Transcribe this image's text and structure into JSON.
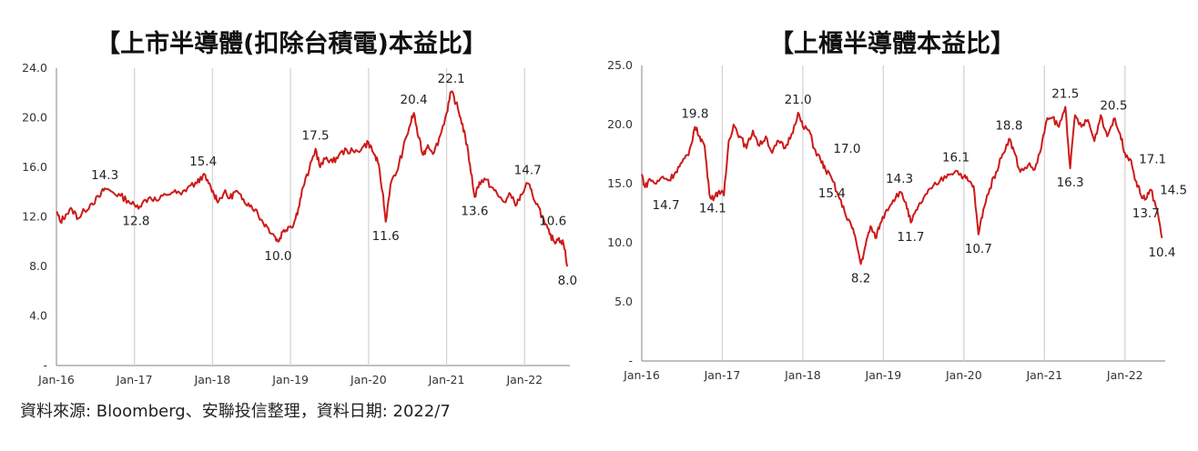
{
  "chart_data": [
    {
      "type": "line",
      "title": "【上市半導體(扣除台積電)本益比】",
      "xlabel": "",
      "ylabel": "",
      "x_ticks": [
        "Jan-16",
        "Jan-17",
        "Jan-18",
        "Jan-19",
        "Jan-20",
        "Jan-21",
        "Jan-22"
      ],
      "y_ticks": [
        "24.0",
        "20.0",
        "16.0",
        "12.0",
        "8.0",
        "4.0",
        "-"
      ],
      "ylim": [
        0,
        24
      ],
      "xlim": [
        2016.0,
        2022.58
      ],
      "grid": "vertical",
      "series_color": "#cc1a1a",
      "points": [
        [
          2016.0,
          12.4
        ],
        [
          2016.05,
          11.6
        ],
        [
          2016.12,
          12.2
        ],
        [
          2016.2,
          12.6
        ],
        [
          2016.28,
          11.9
        ],
        [
          2016.36,
          12.5
        ],
        [
          2016.45,
          13.1
        ],
        [
          2016.55,
          13.6
        ],
        [
          2016.62,
          14.3
        ],
        [
          2016.72,
          14.0
        ],
        [
          2016.82,
          13.7
        ],
        [
          2016.92,
          13.3
        ],
        [
          2017.02,
          12.8
        ],
        [
          2017.1,
          13.1
        ],
        [
          2017.2,
          13.6
        ],
        [
          2017.3,
          13.3
        ],
        [
          2017.4,
          13.8
        ],
        [
          2017.5,
          14.0
        ],
        [
          2017.6,
          13.8
        ],
        [
          2017.7,
          14.5
        ],
        [
          2017.8,
          14.7
        ],
        [
          2017.88,
          15.4
        ],
        [
          2017.95,
          14.7
        ],
        [
          2018.02,
          13.8
        ],
        [
          2018.08,
          13.3
        ],
        [
          2018.15,
          14.0
        ],
        [
          2018.22,
          13.5
        ],
        [
          2018.3,
          14.1
        ],
        [
          2018.38,
          13.4
        ],
        [
          2018.46,
          13.1
        ],
        [
          2018.55,
          12.6
        ],
        [
          2018.62,
          11.8
        ],
        [
          2018.7,
          11.2
        ],
        [
          2018.78,
          10.6
        ],
        [
          2018.84,
          10.0
        ],
        [
          2018.9,
          10.8
        ],
        [
          2018.97,
          11.2
        ],
        [
          2019.04,
          11.4
        ],
        [
          2019.1,
          12.7
        ],
        [
          2019.16,
          14.4
        ],
        [
          2019.24,
          15.8
        ],
        [
          2019.32,
          17.5
        ],
        [
          2019.38,
          16.0
        ],
        [
          2019.46,
          16.8
        ],
        [
          2019.54,
          16.4
        ],
        [
          2019.62,
          17.0
        ],
        [
          2019.72,
          17.4
        ],
        [
          2019.82,
          17.2
        ],
        [
          2019.92,
          17.6
        ],
        [
          2020.0,
          18.0
        ],
        [
          2020.06,
          17.2
        ],
        [
          2020.12,
          16.4
        ],
        [
          2020.18,
          14.0
        ],
        [
          2020.22,
          11.6
        ],
        [
          2020.28,
          14.6
        ],
        [
          2020.36,
          15.6
        ],
        [
          2020.44,
          17.4
        ],
        [
          2020.52,
          19.2
        ],
        [
          2020.58,
          20.4
        ],
        [
          2020.64,
          18.4
        ],
        [
          2020.7,
          17.0
        ],
        [
          2020.76,
          17.8
        ],
        [
          2020.84,
          17.2
        ],
        [
          2020.92,
          18.6
        ],
        [
          2021.0,
          20.4
        ],
        [
          2021.06,
          22.1
        ],
        [
          2021.12,
          21.2
        ],
        [
          2021.18,
          20.0
        ],
        [
          2021.24,
          18.5
        ],
        [
          2021.3,
          16.2
        ],
        [
          2021.36,
          13.6
        ],
        [
          2021.42,
          14.8
        ],
        [
          2021.5,
          15.0
        ],
        [
          2021.58,
          14.4
        ],
        [
          2021.66,
          13.7
        ],
        [
          2021.74,
          13.2
        ],
        [
          2021.82,
          13.8
        ],
        [
          2021.9,
          13.0
        ],
        [
          2021.96,
          13.8
        ],
        [
          2022.04,
          14.7
        ],
        [
          2022.1,
          13.8
        ],
        [
          2022.18,
          12.8
        ],
        [
          2022.26,
          11.4
        ],
        [
          2022.32,
          10.6
        ],
        [
          2022.38,
          10.0
        ],
        [
          2022.44,
          10.3
        ],
        [
          2022.5,
          9.8
        ],
        [
          2022.55,
          8.0
        ]
      ],
      "annotations": [
        {
          "x": 2016.62,
          "y": 14.3,
          "text": "14.3",
          "pos": "above"
        },
        {
          "x": 2017.02,
          "y": 12.8,
          "text": "12.8",
          "pos": "below"
        },
        {
          "x": 2017.88,
          "y": 15.4,
          "text": "15.4",
          "pos": "above"
        },
        {
          "x": 2018.84,
          "y": 10.0,
          "text": "10.0",
          "pos": "below"
        },
        {
          "x": 2019.32,
          "y": 17.5,
          "text": "17.5",
          "pos": "above"
        },
        {
          "x": 2020.22,
          "y": 11.6,
          "text": "11.6",
          "pos": "below"
        },
        {
          "x": 2020.58,
          "y": 20.4,
          "text": "20.4",
          "pos": "above"
        },
        {
          "x": 2021.06,
          "y": 22.1,
          "text": "22.1",
          "pos": "above"
        },
        {
          "x": 2021.36,
          "y": 13.6,
          "text": "13.6",
          "pos": "below"
        },
        {
          "x": 2022.04,
          "y": 14.7,
          "text": "14.7",
          "pos": "above"
        },
        {
          "x": 2022.36,
          "y": 10.6,
          "text": "10.6",
          "pos": "above"
        },
        {
          "x": 2022.55,
          "y": 8.0,
          "text": "8.0",
          "pos": "below"
        }
      ]
    },
    {
      "type": "line",
      "title": "【上櫃半導體本益比】",
      "xlabel": "",
      "ylabel": "",
      "x_ticks": [
        "Jan-16",
        "Jan-17",
        "Jan-18",
        "Jan-19",
        "Jan-20",
        "Jan-21",
        "Jan-22"
      ],
      "y_ticks": [
        "25.0",
        "20.0",
        "15.0",
        "10.0",
        "5.0",
        "-"
      ],
      "ylim": [
        0,
        25
      ],
      "xlim": [
        2016.0,
        2022.5
      ],
      "grid": "vertical",
      "series_color": "#cc1a1a",
      "points": [
        [
          2016.0,
          15.8
        ],
        [
          2016.04,
          14.7
        ],
        [
          2016.1,
          15.4
        ],
        [
          2016.18,
          15.0
        ],
        [
          2016.26,
          15.6
        ],
        [
          2016.34,
          15.3
        ],
        [
          2016.42,
          16.0
        ],
        [
          2016.5,
          16.8
        ],
        [
          2016.58,
          17.4
        ],
        [
          2016.66,
          19.8
        ],
        [
          2016.72,
          19.0
        ],
        [
          2016.78,
          18.2
        ],
        [
          2016.84,
          14.1
        ],
        [
          2016.9,
          13.8
        ],
        [
          2016.96,
          14.4
        ],
        [
          2017.02,
          14.0
        ],
        [
          2017.08,
          18.6
        ],
        [
          2017.14,
          20.0
        ],
        [
          2017.22,
          19.0
        ],
        [
          2017.3,
          18.0
        ],
        [
          2017.38,
          19.5
        ],
        [
          2017.46,
          18.2
        ],
        [
          2017.54,
          19.0
        ],
        [
          2017.62,
          17.6
        ],
        [
          2017.7,
          18.6
        ],
        [
          2017.78,
          18.0
        ],
        [
          2017.86,
          19.2
        ],
        [
          2017.94,
          21.0
        ],
        [
          2018.0,
          19.8
        ],
        [
          2018.08,
          19.5
        ],
        [
          2018.14,
          18.0
        ],
        [
          2018.22,
          17.0
        ],
        [
          2018.28,
          16.2
        ],
        [
          2018.36,
          15.4
        ],
        [
          2018.44,
          14.0
        ],
        [
          2018.52,
          12.6
        ],
        [
          2018.6,
          11.5
        ],
        [
          2018.66,
          10.2
        ],
        [
          2018.72,
          8.2
        ],
        [
          2018.78,
          9.8
        ],
        [
          2018.84,
          11.4
        ],
        [
          2018.9,
          10.4
        ],
        [
          2018.96,
          11.6
        ],
        [
          2019.04,
          12.8
        ],
        [
          2019.12,
          13.6
        ],
        [
          2019.2,
          14.3
        ],
        [
          2019.28,
          13.4
        ],
        [
          2019.34,
          11.7
        ],
        [
          2019.42,
          12.8
        ],
        [
          2019.5,
          13.8
        ],
        [
          2019.6,
          14.6
        ],
        [
          2019.7,
          15.2
        ],
        [
          2019.8,
          15.8
        ],
        [
          2019.9,
          16.1
        ],
        [
          2020.0,
          15.6
        ],
        [
          2020.06,
          15.2
        ],
        [
          2020.12,
          14.8
        ],
        [
          2020.18,
          10.7
        ],
        [
          2020.24,
          12.8
        ],
        [
          2020.32,
          14.6
        ],
        [
          2020.4,
          16.0
        ],
        [
          2020.48,
          17.5
        ],
        [
          2020.56,
          18.8
        ],
        [
          2020.62,
          17.8
        ],
        [
          2020.7,
          16.0
        ],
        [
          2020.8,
          16.6
        ],
        [
          2020.88,
          16.2
        ],
        [
          2020.96,
          18.0
        ],
        [
          2021.02,
          20.2
        ],
        [
          2021.1,
          20.6
        ],
        [
          2021.18,
          19.8
        ],
        [
          2021.26,
          21.5
        ],
        [
          2021.32,
          16.3
        ],
        [
          2021.38,
          20.8
        ],
        [
          2021.46,
          19.8
        ],
        [
          2021.54,
          20.4
        ],
        [
          2021.62,
          18.6
        ],
        [
          2021.7,
          20.8
        ],
        [
          2021.78,
          19.0
        ],
        [
          2021.86,
          20.5
        ],
        [
          2021.94,
          19.2
        ],
        [
          2022.0,
          17.6
        ],
        [
          2022.06,
          17.1
        ],
        [
          2022.14,
          15.2
        ],
        [
          2022.2,
          14.0
        ],
        [
          2022.26,
          13.7
        ],
        [
          2022.32,
          14.5
        ],
        [
          2022.4,
          12.8
        ],
        [
          2022.46,
          10.4
        ]
      ],
      "annotations": [
        {
          "x": 2016.04,
          "y": 14.7,
          "text": "14.7",
          "pos": "below-right"
        },
        {
          "x": 2016.66,
          "y": 19.8,
          "text": "19.8",
          "pos": "above"
        },
        {
          "x": 2016.88,
          "y": 14.1,
          "text": "14.1",
          "pos": "below"
        },
        {
          "x": 2017.94,
          "y": 21.0,
          "text": "21.0",
          "pos": "above"
        },
        {
          "x": 2018.22,
          "y": 17.0,
          "text": "17.0",
          "pos": "above-right"
        },
        {
          "x": 2018.36,
          "y": 15.4,
          "text": "15.4",
          "pos": "below"
        },
        {
          "x": 2018.72,
          "y": 8.2,
          "text": "8.2",
          "pos": "below"
        },
        {
          "x": 2019.2,
          "y": 14.3,
          "text": "14.3",
          "pos": "above"
        },
        {
          "x": 2019.34,
          "y": 11.7,
          "text": "11.7",
          "pos": "below"
        },
        {
          "x": 2019.9,
          "y": 16.1,
          "text": "16.1",
          "pos": "above"
        },
        {
          "x": 2020.18,
          "y": 10.7,
          "text": "10.7",
          "pos": "below"
        },
        {
          "x": 2020.56,
          "y": 18.8,
          "text": "18.8",
          "pos": "above"
        },
        {
          "x": 2021.26,
          "y": 21.5,
          "text": "21.5",
          "pos": "above"
        },
        {
          "x": 2021.32,
          "y": 16.3,
          "text": "16.3",
          "pos": "below"
        },
        {
          "x": 2021.86,
          "y": 20.5,
          "text": "20.5",
          "pos": "above"
        },
        {
          "x": 2022.06,
          "y": 17.1,
          "text": "17.1",
          "pos": "right"
        },
        {
          "x": 2022.32,
          "y": 14.5,
          "text": "14.5",
          "pos": "right"
        },
        {
          "x": 2022.26,
          "y": 13.7,
          "text": "13.7",
          "pos": "below"
        },
        {
          "x": 2022.46,
          "y": 10.4,
          "text": "10.4",
          "pos": "below"
        }
      ]
    }
  ],
  "footer": {
    "source": "資料來源: Bloomberg、安聯投信整理，資料日期:  2022/7"
  }
}
